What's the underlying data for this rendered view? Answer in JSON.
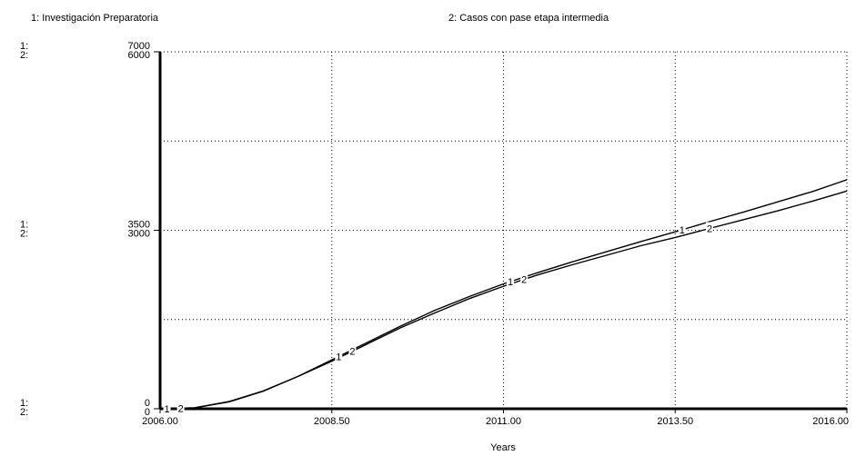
{
  "chart_data": {
    "type": "line",
    "legend": [
      {
        "label": "1: Investigación Preparatoria",
        "color": "#000000"
      },
      {
        "label": "2: Casos con pase etapa intermedia",
        "color": "#000000"
      }
    ],
    "xlabel": "Years",
    "x_ticks": [
      "2006.00",
      "2008.50",
      "2011.00",
      "2013.50",
      "2016.00"
    ],
    "xlim": [
      2006.0,
      2016.0
    ],
    "grid": true,
    "axes": [
      {
        "id": "1",
        "label": "1:",
        "ylim": [
          0,
          7000
        ],
        "ticks": [
          {
            "value": 7000,
            "label": "7000"
          },
          {
            "value": 3500,
            "label": "3500"
          },
          {
            "value": 0,
            "label": "0"
          }
        ]
      },
      {
        "id": "2",
        "label": "2:",
        "ylim": [
          0,
          6000
        ],
        "ticks": [
          {
            "value": 6000,
            "label": "6000"
          },
          {
            "value": 3000,
            "label": "3000"
          },
          {
            "value": 0,
            "label": "0"
          }
        ]
      }
    ],
    "series": [
      {
        "name": "1",
        "axis": "1",
        "marker": "1",
        "x": [
          2006.0,
          2006.5,
          2007.0,
          2007.5,
          2008.0,
          2008.5,
          2009.0,
          2009.5,
          2010.0,
          2010.5,
          2011.0,
          2011.5,
          2012.0,
          2012.5,
          2013.0,
          2013.5,
          2014.0,
          2014.5,
          2015.0,
          2015.5,
          2016.0
        ],
        "y": [
          0,
          20,
          140,
          350,
          630,
          960,
          1290,
          1620,
          1930,
          2200,
          2450,
          2670,
          2880,
          3080,
          3280,
          3470,
          3670,
          3860,
          4060,
          4260,
          4490
        ]
      },
      {
        "name": "2",
        "axis": "2",
        "marker": "2",
        "x": [
          2006.0,
          2006.5,
          2007.0,
          2007.5,
          2008.0,
          2008.5,
          2009.0,
          2009.5,
          2010.0,
          2010.5,
          2011.0,
          2011.5,
          2012.0,
          2012.5,
          2013.0,
          2013.5,
          2014.0,
          2014.5,
          2015.0,
          2015.5,
          2016.0
        ],
        "y": [
          0,
          15,
          115,
          295,
          540,
          800,
          1080,
          1360,
          1610,
          1850,
          2060,
          2250,
          2420,
          2580,
          2740,
          2880,
          3030,
          3180,
          3330,
          3490,
          3660
        ]
      }
    ]
  }
}
